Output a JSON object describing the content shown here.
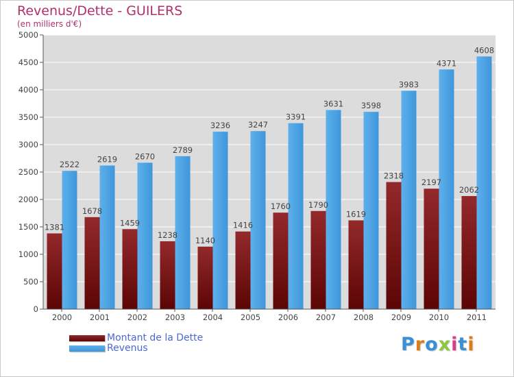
{
  "header": {
    "title": "Revenus/Dette - GUILERS",
    "subtitle": "(en milliers d'€)"
  },
  "chart_data": {
    "type": "bar",
    "categories": [
      "2000",
      "2001",
      "2002",
      "2003",
      "2004",
      "2005",
      "2006",
      "2007",
      "2008",
      "2009",
      "2010",
      "2011"
    ],
    "series": [
      {
        "name": "Montant de la Dette",
        "color": "#8b1a1a",
        "values": [
          1381,
          1678,
          1459,
          1238,
          1140,
          1416,
          1760,
          1790,
          1619,
          2318,
          2197,
          2062
        ],
        "labels": [
          "1381",
          "1678",
          "1459",
          "1238",
          "1140",
          "1416",
          "1760",
          "1790",
          "1619",
          "2318",
          "2197",
          "2062"
        ]
      },
      {
        "name": "Revenus",
        "color": "#4da3e3",
        "values": [
          2522,
          2619,
          2670,
          2789,
          3236,
          3247,
          3391,
          3631,
          3598,
          3983,
          4371,
          4608
        ],
        "labels": [
          "2522",
          "2619",
          "2670",
          "2789",
          "3236",
          "3247",
          "3391",
          "3631",
          "3598",
          "3983",
          "4371",
          "4608"
        ]
      }
    ],
    "ylim": [
      0,
      5000
    ],
    "yticks": [
      "0",
      "500",
      "1000",
      "1500",
      "2000",
      "2500",
      "3000",
      "3500",
      "4000",
      "4500",
      "5000"
    ],
    "grid": true,
    "legend": "bottom-left"
  },
  "legend": {
    "items": [
      {
        "label": "Montant de la Dette",
        "color": "#8b1a1a"
      },
      {
        "label": "Revenus",
        "color": "#4da3e3"
      }
    ]
  },
  "logo": {
    "letters": [
      "P",
      "r",
      "o",
      "x",
      "i",
      "t",
      "i"
    ],
    "colors": [
      "#3b8fd6",
      "#e07b1a",
      "#3b8fd6",
      "#8dc63f",
      "#e03a8a",
      "#3b8fd6",
      "#e07b1a"
    ]
  }
}
